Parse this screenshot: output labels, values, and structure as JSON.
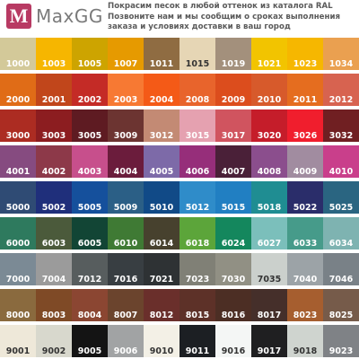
{
  "header": {
    "logo_letter": "M",
    "logo_name": "MaxGG",
    "brand_color": "#b83a63",
    "promo_lines": [
      "Покрасим песок в любой оттенок из каталога RAL",
      "Позвоните нам и мы сообщим о сроках выполнения",
      "заказа и условиях доставки в ваш город"
    ]
  },
  "swatches": [
    [
      {
        "code": "1000",
        "color": "#d3c999",
        "text": "#ffffff"
      },
      {
        "code": "1003",
        "color": "#f6b600",
        "text": "#ffffff"
      },
      {
        "code": "1005",
        "color": "#cda400",
        "text": "#ffffff"
      },
      {
        "code": "1007",
        "color": "#e69a00",
        "text": "#ffffff"
      },
      {
        "code": "1011",
        "color": "#8f6c42",
        "text": "#ffffff"
      },
      {
        "code": "1015",
        "color": "#e6d6b5",
        "text": "#333333"
      },
      {
        "code": "1019",
        "color": "#a3907c",
        "text": "#ffffff"
      },
      {
        "code": "1021",
        "color": "#f2c400",
        "text": "#ffffff"
      },
      {
        "code": "1023",
        "color": "#f6b700",
        "text": "#ffffff"
      },
      {
        "code": "1034",
        "color": "#eaa050",
        "text": "#ffffff"
      }
    ],
    [
      {
        "code": "2000",
        "color": "#e06c17",
        "text": "#ffffff"
      },
      {
        "code": "2001",
        "color": "#c1461b",
        "text": "#ffffff"
      },
      {
        "code": "2002",
        "color": "#c42b26",
        "text": "#ffffff"
      },
      {
        "code": "2003",
        "color": "#f77933",
        "text": "#ffffff"
      },
      {
        "code": "2004",
        "color": "#f45a17",
        "text": "#ffffff"
      },
      {
        "code": "2008",
        "color": "#e8642c",
        "text": "#ffffff"
      },
      {
        "code": "2009",
        "color": "#dc4d1d",
        "text": "#ffffff"
      },
      {
        "code": "2010",
        "color": "#d75a2b",
        "text": "#ffffff"
      },
      {
        "code": "2011",
        "color": "#e56d1f",
        "text": "#ffffff"
      },
      {
        "code": "2012",
        "color": "#d76350",
        "text": "#ffffff"
      }
    ],
    [
      {
        "code": "3000",
        "color": "#ac2c22",
        "text": "#ffffff"
      },
      {
        "code": "3003",
        "color": "#8c1d20",
        "text": "#ffffff"
      },
      {
        "code": "3005",
        "color": "#5e1b22",
        "text": "#ffffff"
      },
      {
        "code": "3009",
        "color": "#6c3431",
        "text": "#ffffff"
      },
      {
        "code": "3012",
        "color": "#c38a74",
        "text": "#ffffff"
      },
      {
        "code": "3015",
        "color": "#e5a1b0",
        "text": "#ffffff"
      },
      {
        "code": "3017",
        "color": "#d0545f",
        "text": "#ffffff"
      },
      {
        "code": "3020",
        "color": "#c51d2a",
        "text": "#ffffff"
      },
      {
        "code": "3026",
        "color": "#f01e2d",
        "text": "#ffffff"
      },
      {
        "code": "3032",
        "color": "#701f22",
        "text": "#ffffff"
      }
    ],
    [
      {
        "code": "4001",
        "color": "#864b80",
        "text": "#ffffff"
      },
      {
        "code": "4002",
        "color": "#8d3949",
        "text": "#ffffff"
      },
      {
        "code": "4003",
        "color": "#c74f8c",
        "text": "#ffffff"
      },
      {
        "code": "4004",
        "color": "#6b1c3c",
        "text": "#ffffff"
      },
      {
        "code": "4005",
        "color": "#7d6aa8",
        "text": "#ffffff"
      },
      {
        "code": "4006",
        "color": "#962e7a",
        "text": "#ffffff"
      },
      {
        "code": "4007",
        "color": "#4a2038",
        "text": "#ffffff"
      },
      {
        "code": "4008",
        "color": "#8b4e8d",
        "text": "#ffffff"
      },
      {
        "code": "4009",
        "color": "#a18ca0",
        "text": "#ffffff"
      },
      {
        "code": "4010",
        "color": "#c93f8b",
        "text": "#ffffff"
      }
    ],
    [
      {
        "code": "5000",
        "color": "#2f4b74",
        "text": "#ffffff"
      },
      {
        "code": "5002",
        "color": "#1f2f7b",
        "text": "#ffffff"
      },
      {
        "code": "5005",
        "color": "#15509c",
        "text": "#ffffff"
      },
      {
        "code": "5009",
        "color": "#2b5f86",
        "text": "#ffffff"
      },
      {
        "code": "5010",
        "color": "#114a87",
        "text": "#ffffff"
      },
      {
        "code": "5012",
        "color": "#2f8cc9",
        "text": "#ffffff"
      },
      {
        "code": "5015",
        "color": "#217fc2",
        "text": "#ffffff"
      },
      {
        "code": "5018",
        "color": "#1f8d92",
        "text": "#ffffff"
      },
      {
        "code": "5022",
        "color": "#2a2d6a",
        "text": "#ffffff"
      },
      {
        "code": "5025",
        "color": "#2a6581",
        "text": "#ffffff"
      }
    ],
    [
      {
        "code": "6000",
        "color": "#2e7a5e",
        "text": "#ffffff"
      },
      {
        "code": "6003",
        "color": "#4b5a3b",
        "text": "#ffffff"
      },
      {
        "code": "6005",
        "color": "#124535",
        "text": "#ffffff"
      },
      {
        "code": "6010",
        "color": "#3f7a34",
        "text": "#ffffff"
      },
      {
        "code": "6014",
        "color": "#47412e",
        "text": "#ffffff"
      },
      {
        "code": "6018",
        "color": "#5ca53a",
        "text": "#ffffff"
      },
      {
        "code": "6024",
        "color": "#14875d",
        "text": "#ffffff"
      },
      {
        "code": "6027",
        "color": "#7bbfbb",
        "text": "#ffffff"
      },
      {
        "code": "6033",
        "color": "#469b8a",
        "text": "#ffffff"
      },
      {
        "code": "6034",
        "color": "#7eb3b1",
        "text": "#ffffff"
      }
    ],
    [
      {
        "code": "7000",
        "color": "#7b8a95",
        "text": "#ffffff"
      },
      {
        "code": "7004",
        "color": "#9b9b9b",
        "text": "#ffffff"
      },
      {
        "code": "7012",
        "color": "#575d5e",
        "text": "#ffffff"
      },
      {
        "code": "7016",
        "color": "#383e42",
        "text": "#ffffff"
      },
      {
        "code": "7021",
        "color": "#2e3234",
        "text": "#ffffff"
      },
      {
        "code": "7023",
        "color": "#808076",
        "text": "#ffffff"
      },
      {
        "code": "7030",
        "color": "#919084",
        "text": "#ffffff"
      },
      {
        "code": "7035",
        "color": "#cbd0cc",
        "text": "#333333"
      },
      {
        "code": "7040",
        "color": "#9ca3a7",
        "text": "#ffffff"
      },
      {
        "code": "7046",
        "color": "#798187",
        "text": "#ffffff"
      }
    ],
    [
      {
        "code": "8000",
        "color": "#8a6a3e",
        "text": "#ffffff"
      },
      {
        "code": "8003",
        "color": "#7f4a26",
        "text": "#ffffff"
      },
      {
        "code": "8004",
        "color": "#8b4632",
        "text": "#ffffff"
      },
      {
        "code": "8007",
        "color": "#6b442d",
        "text": "#ffffff"
      },
      {
        "code": "8012",
        "color": "#6a2f2b",
        "text": "#ffffff"
      },
      {
        "code": "8015",
        "color": "#5d3128",
        "text": "#ffffff"
      },
      {
        "code": "8016",
        "color": "#4c2e24",
        "text": "#ffffff"
      },
      {
        "code": "8017",
        "color": "#452f2a",
        "text": "#ffffff"
      },
      {
        "code": "8023",
        "color": "#a65e2f",
        "text": "#ffffff"
      },
      {
        "code": "8025",
        "color": "#765b4a",
        "text": "#ffffff"
      }
    ],
    [
      {
        "code": "9001",
        "color": "#eee8d9",
        "text": "#333333"
      },
      {
        "code": "9002",
        "color": "#d8d8cd",
        "text": "#333333"
      },
      {
        "code": "9005",
        "color": "#141414",
        "text": "#ffffff"
      },
      {
        "code": "9006",
        "color": "#a1a3a4",
        "text": "#ffffff"
      },
      {
        "code": "9010",
        "color": "#f3f0e6",
        "text": "#333333"
      },
      {
        "code": "9011",
        "color": "#1c1f23",
        "text": "#ffffff"
      },
      {
        "code": "9016",
        "color": "#f4f6f5",
        "text": "#333333"
      },
      {
        "code": "9017",
        "color": "#1f1f21",
        "text": "#ffffff"
      },
      {
        "code": "9018",
        "color": "#cfd4cf",
        "text": "#333333"
      },
      {
        "code": "9023",
        "color": "#7f8286",
        "text": "#ffffff"
      }
    ]
  ]
}
